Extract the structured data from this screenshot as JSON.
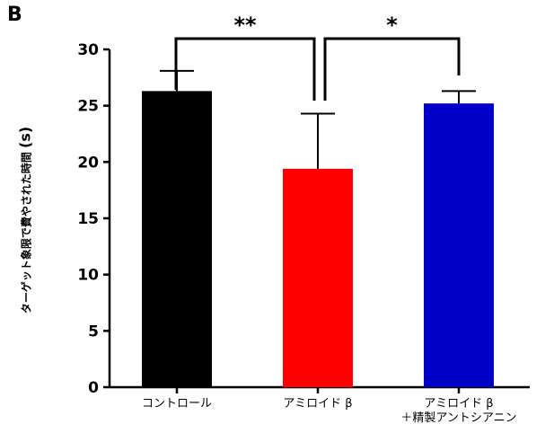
{
  "panel_label": "B",
  "chart_data": {
    "type": "bar",
    "title": "",
    "ylabel": "ターゲット象限で費やされた時間 (s)",
    "ylabel_text": "ターゲット象限で費やされた時間",
    "ylabel_unit": "(s)",
    "xlabel": "",
    "ylim": [
      0,
      30
    ],
    "yticks": [
      0,
      5,
      10,
      15,
      20,
      25,
      30
    ],
    "categories": [
      [
        "コントロール"
      ],
      [
        "アミロイド β"
      ],
      [
        "アミロイド β",
        "＋精製アントシアニン"
      ]
    ],
    "values": [
      26.3,
      19.4,
      25.2
    ],
    "errors": [
      1.8,
      4.9,
      1.1
    ],
    "colors": [
      "#000000",
      "#ff0000",
      "#0000c8"
    ],
    "significance": [
      {
        "from": 0,
        "to": 1,
        "label": "**",
        "y": 30.3
      },
      {
        "from": 1,
        "to": 2,
        "label": "*",
        "y": 30.3
      }
    ],
    "grid": false,
    "legend": "none"
  }
}
